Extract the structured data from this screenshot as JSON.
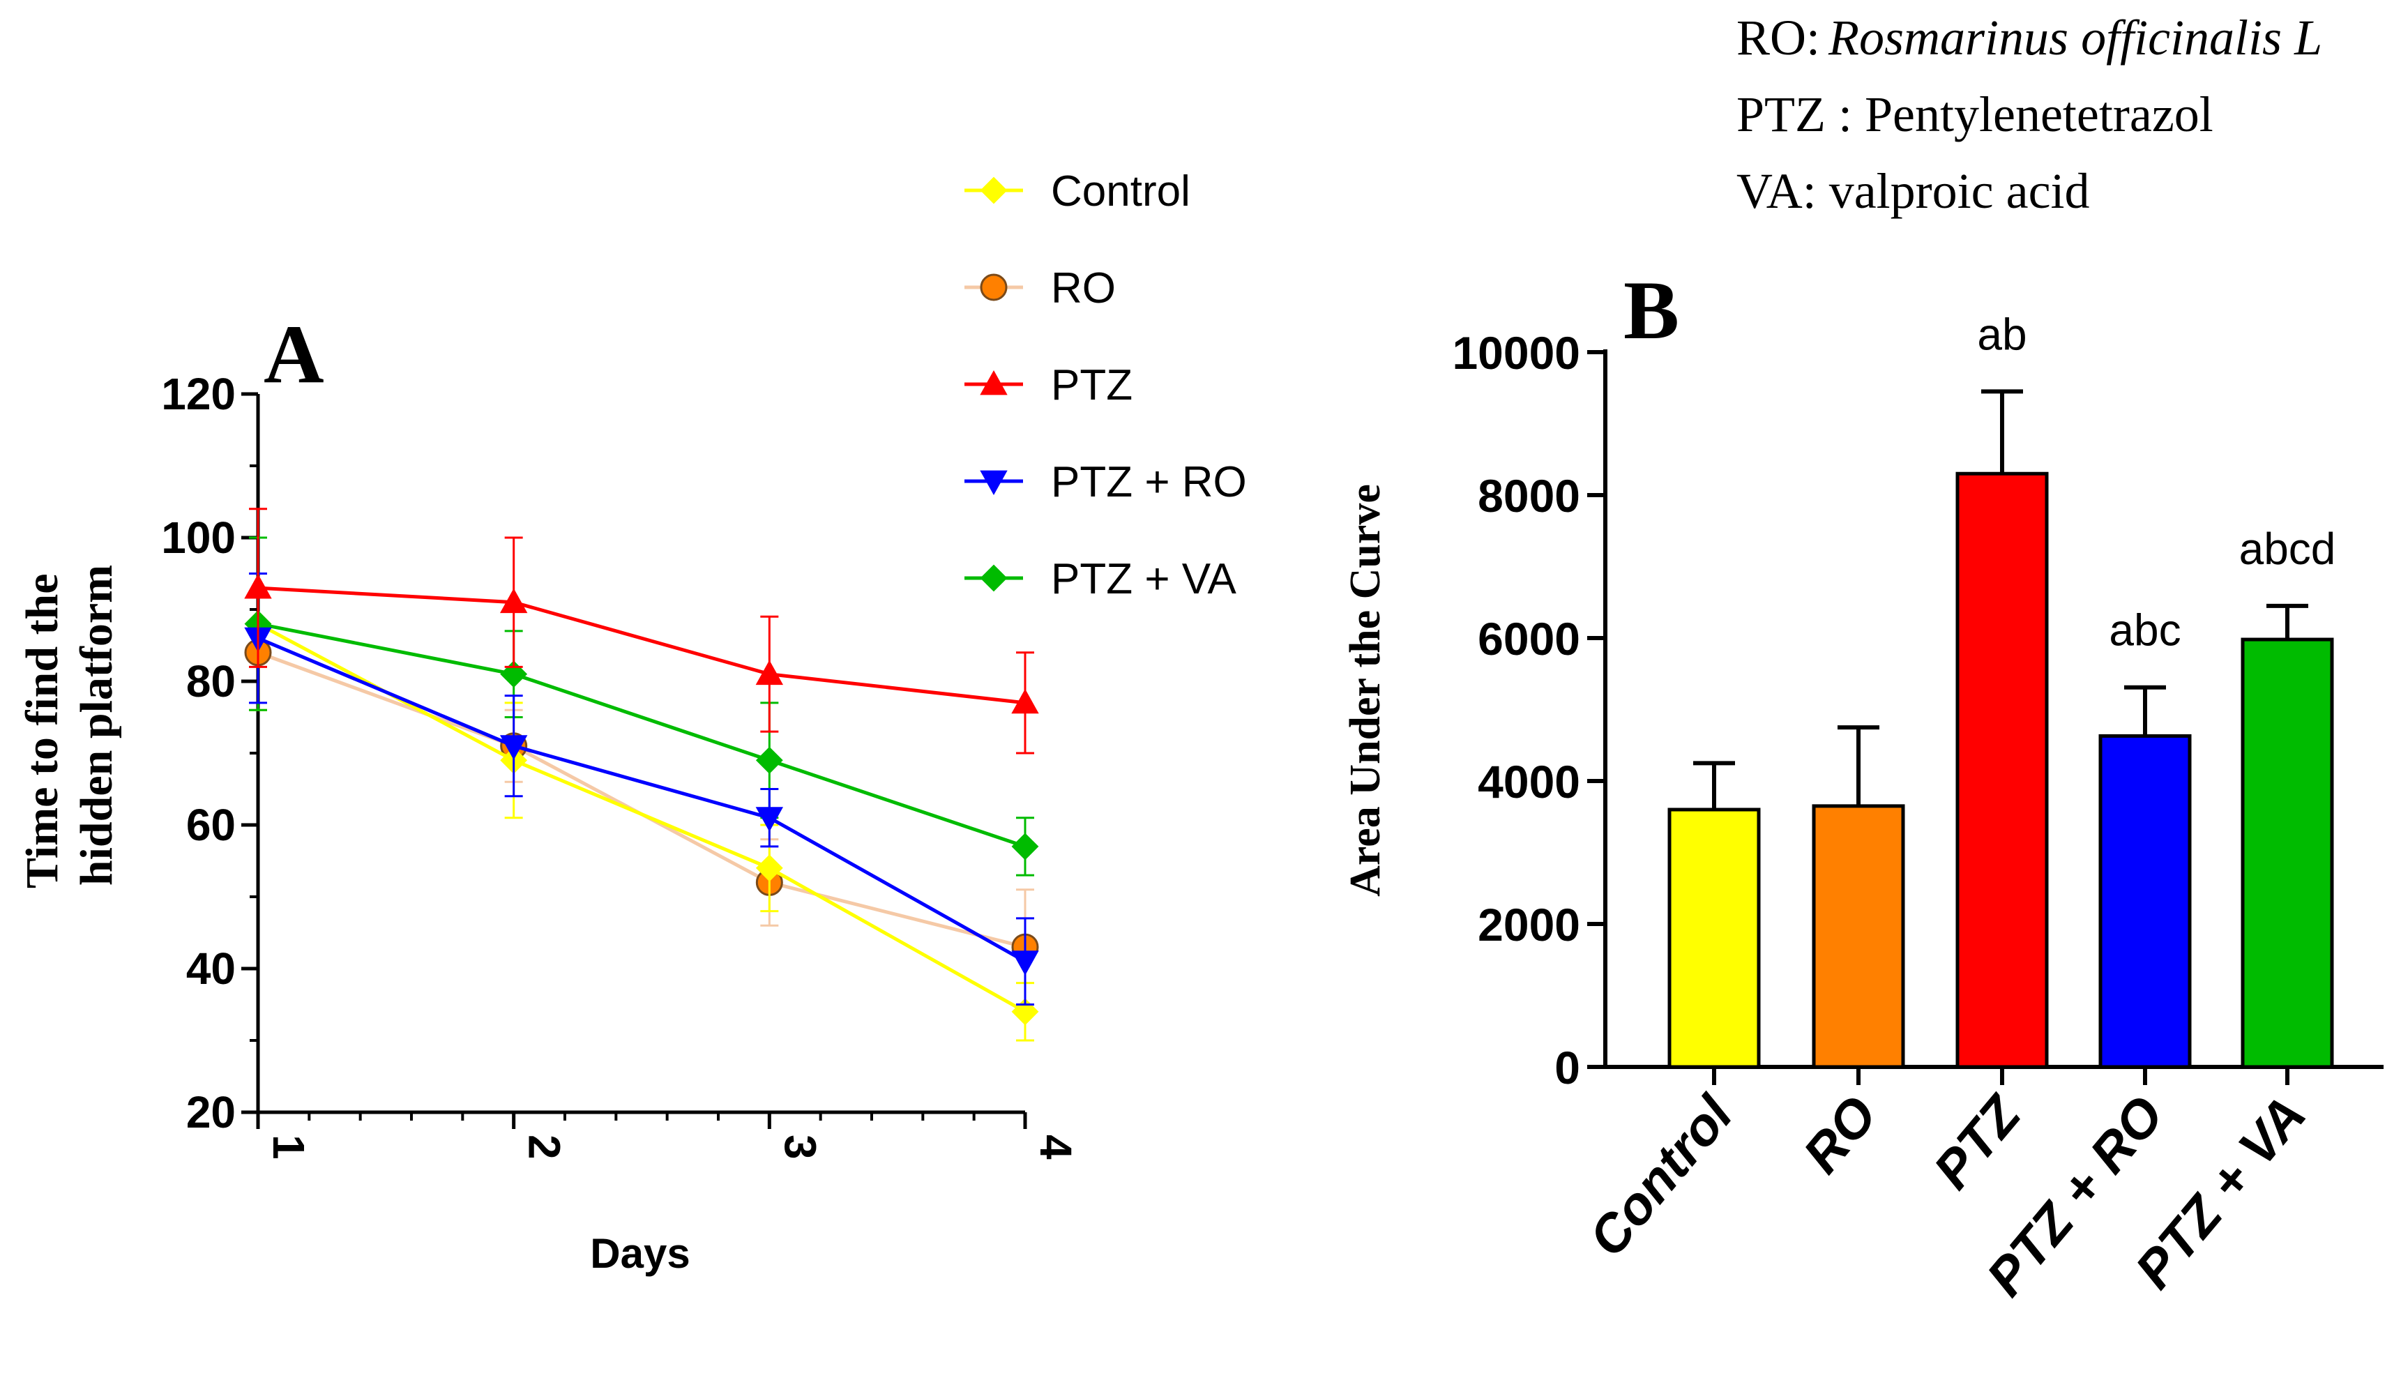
{
  "abbreviations": {
    "ro_key": "RO:",
    "ro_value": "Rosmarinus officinalis L",
    "ptz": "PTZ : Pentylenetetrazol",
    "va": "VA: valproic acid"
  },
  "colors": {
    "control": "#ffff00",
    "ro": "#ff8000",
    "ro_line": "#f5c9a6",
    "ptz": "#ff0000",
    "ptz_ro": "#0000ff",
    "ptz_va": "#00bb00",
    "axis": "#000000"
  },
  "chart_data": [
    {
      "id": "A",
      "panel_label": "A",
      "type": "line",
      "title": "",
      "xlabel": "Days",
      "ylabel_line1": "Time to find the",
      "ylabel_line2": "hidden platform",
      "x": [
        1,
        2,
        3,
        4
      ],
      "xticks": [
        "1",
        "2",
        "3",
        "4"
      ],
      "ylim": [
        20,
        120
      ],
      "yticks": [
        "20",
        "40",
        "60",
        "80",
        "100",
        "120"
      ],
      "legend_position": "right",
      "series": [
        {
          "name": "Control",
          "marker": "diamond",
          "values": [
            88,
            69,
            54,
            34
          ],
          "errors": [
            12,
            8,
            6,
            4
          ]
        },
        {
          "name": "RO",
          "marker": "circle",
          "values": [
            84,
            71,
            52,
            43
          ],
          "errors": [
            8,
            5,
            6,
            8
          ]
        },
        {
          "name": "PTZ",
          "marker": "triangle-up",
          "values": [
            93,
            91,
            81,
            77
          ],
          "errors": [
            11,
            9,
            8,
            7
          ]
        },
        {
          "name": "PTZ + RO",
          "marker": "triangle-down",
          "values": [
            86,
            71,
            61,
            41
          ],
          "errors": [
            9,
            7,
            4,
            6
          ]
        },
        {
          "name": "PTZ + VA",
          "marker": "diamond",
          "values": [
            88,
            81,
            69,
            57
          ],
          "errors": [
            12,
            6,
            8,
            4
          ]
        }
      ]
    },
    {
      "id": "B",
      "panel_label": "B",
      "type": "bar",
      "title": "",
      "xlabel": "",
      "ylabel": "Area Under the Curve",
      "categories": [
        "Control",
        "RO",
        "PTZ",
        "PTZ + RO",
        "PTZ + VA"
      ],
      "values": [
        3600,
        3650,
        8300,
        4630,
        5980
      ],
      "errors": [
        650,
        1100,
        1150,
        680,
        470
      ],
      "annotations": [
        "",
        "",
        "ab",
        "abc",
        "abcd"
      ],
      "ylim": [
        0,
        10000
      ],
      "yticks": [
        "0",
        "2000",
        "4000",
        "6000",
        "8000",
        "10000"
      ]
    }
  ]
}
